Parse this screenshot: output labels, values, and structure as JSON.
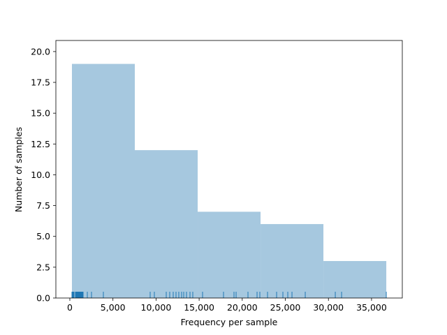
{
  "chart_data": {
    "type": "histogram",
    "xlabel": "Frequency per sample",
    "ylabel": "Number of samples",
    "bins": [
      243,
      7537,
      14831,
      22125,
      29419,
      36713
    ],
    "counts": [
      19,
      12,
      7,
      6,
      3
    ],
    "color": "#a6c8df",
    "rug_color": "#1f77b4",
    "rug": [
      243,
      324,
      405,
      486,
      648,
      729,
      810,
      891,
      972,
      1054,
      1135,
      1216,
      1297,
      1378,
      1459,
      1540,
      2026,
      2512,
      3890,
      9320,
      9805,
      11184,
      11589,
      11994,
      12318,
      12642,
      12966,
      13210,
      13534,
      13939,
      14263,
      15398,
      17829,
      19044,
      19288,
      20665,
      21719,
      22043,
      22934,
      23988,
      24717,
      25284,
      25771,
      27310,
      30795,
      31526,
      36711
    ],
    "xlim": [
      -1620,
      38570
    ],
    "ylim": [
      0,
      20.9
    ],
    "xticks": [
      0,
      {
        "value": 5000,
        "label": "5,000"
      },
      {
        "value": 10000,
        "label": "10,000"
      },
      {
        "value": 15000,
        "label": "15,000"
      },
      {
        "value": 20000,
        "label": "20,000"
      },
      {
        "value": 25000,
        "label": "25,000"
      },
      {
        "value": 30000,
        "label": "30,000"
      },
      {
        "value": 35000,
        "label": "35,000"
      }
    ],
    "yticks": [
      {
        "value": 0,
        "label": "0.0"
      },
      2.5,
      {
        "value": 5,
        "label": "5.0"
      },
      7.5,
      {
        "value": 10,
        "label": "10.0"
      },
      12.5,
      {
        "value": 15,
        "label": "15.0"
      },
      17.5,
      {
        "value": 20,
        "label": "20.0"
      }
    ]
  }
}
